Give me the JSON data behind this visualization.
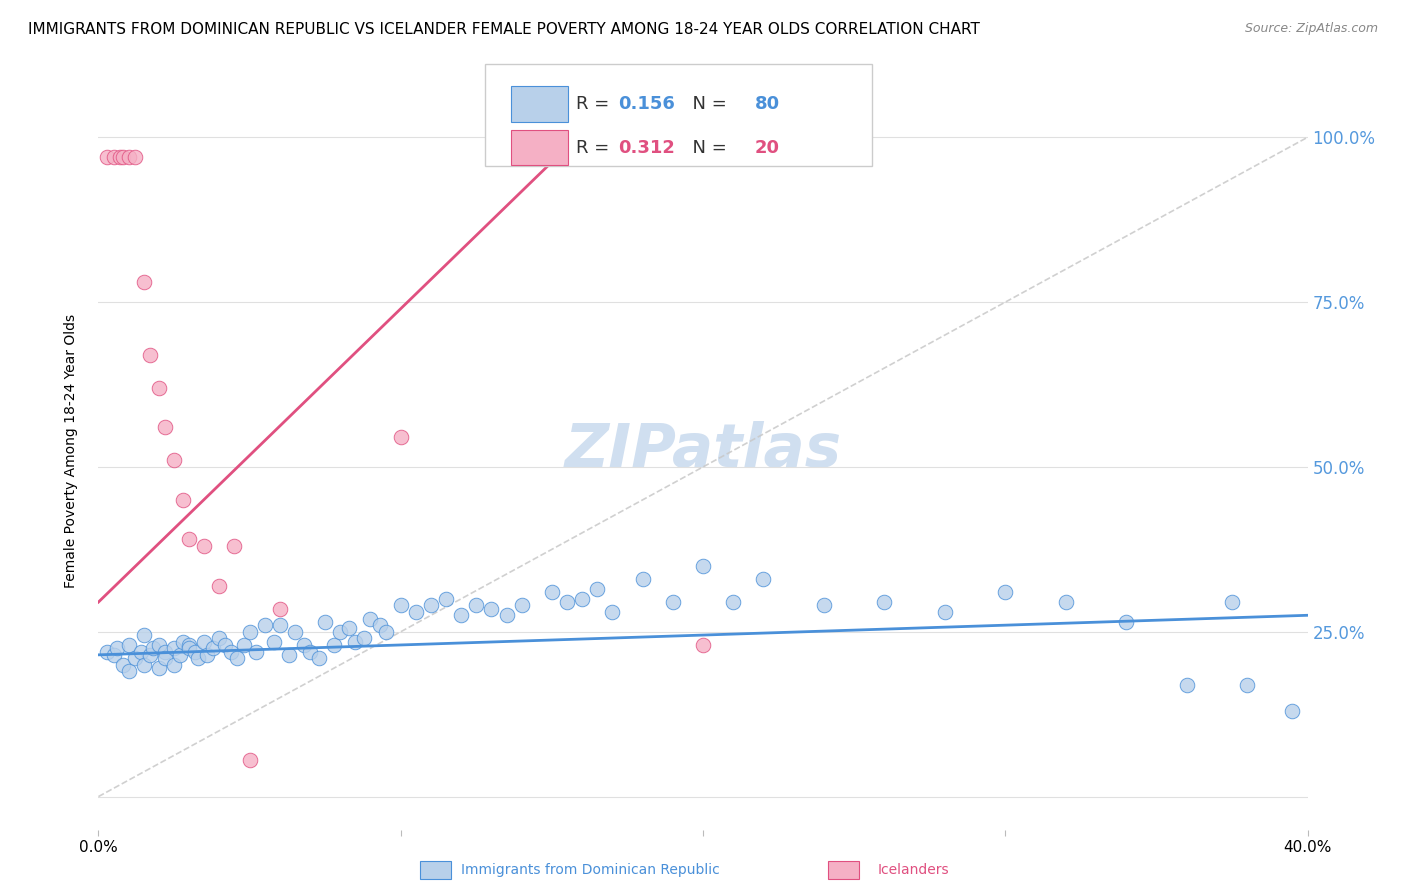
{
  "title": "IMMIGRANTS FROM DOMINICAN REPUBLIC VS ICELANDER FEMALE POVERTY AMONG 18-24 YEAR OLDS CORRELATION CHART",
  "source": "Source: ZipAtlas.com",
  "ylabel": "Female Poverty Among 18-24 Year Olds",
  "yticks": [
    0.0,
    0.25,
    0.5,
    0.75,
    1.0
  ],
  "ytick_labels": [
    "",
    "25.0%",
    "50.0%",
    "75.0%",
    "100.0%"
  ],
  "xlim": [
    0.0,
    0.4
  ],
  "ylim": [
    -0.05,
    1.1
  ],
  "legend_blue_R": "0.156",
  "legend_blue_N": "80",
  "legend_pink_R": "0.312",
  "legend_pink_N": "20",
  "legend_label_blue": "Immigrants from Dominican Republic",
  "legend_label_pink": "Icelanders",
  "blue_color": "#b8d0ea",
  "pink_color": "#f5b0c5",
  "blue_line_color": "#4a90d9",
  "pink_line_color": "#e05080",
  "dash_line_color": "#c8c8c8",
  "watermark": "ZIPatlas",
  "blue_scatter_x": [
    0.003,
    0.005,
    0.006,
    0.008,
    0.01,
    0.01,
    0.012,
    0.014,
    0.015,
    0.015,
    0.017,
    0.018,
    0.02,
    0.02,
    0.022,
    0.022,
    0.025,
    0.025,
    0.027,
    0.028,
    0.03,
    0.03,
    0.032,
    0.033,
    0.035,
    0.036,
    0.038,
    0.04,
    0.042,
    0.044,
    0.046,
    0.048,
    0.05,
    0.052,
    0.055,
    0.058,
    0.06,
    0.063,
    0.065,
    0.068,
    0.07,
    0.073,
    0.075,
    0.078,
    0.08,
    0.083,
    0.085,
    0.088,
    0.09,
    0.093,
    0.095,
    0.1,
    0.105,
    0.11,
    0.115,
    0.12,
    0.125,
    0.13,
    0.135,
    0.14,
    0.15,
    0.155,
    0.16,
    0.165,
    0.17,
    0.18,
    0.19,
    0.2,
    0.21,
    0.22,
    0.24,
    0.26,
    0.28,
    0.3,
    0.32,
    0.34,
    0.36,
    0.375,
    0.38,
    0.395
  ],
  "blue_scatter_y": [
    0.22,
    0.215,
    0.225,
    0.2,
    0.23,
    0.19,
    0.21,
    0.22,
    0.245,
    0.2,
    0.215,
    0.225,
    0.23,
    0.195,
    0.22,
    0.21,
    0.225,
    0.2,
    0.215,
    0.235,
    0.23,
    0.225,
    0.22,
    0.21,
    0.235,
    0.215,
    0.225,
    0.24,
    0.23,
    0.22,
    0.21,
    0.23,
    0.25,
    0.22,
    0.26,
    0.235,
    0.26,
    0.215,
    0.25,
    0.23,
    0.22,
    0.21,
    0.265,
    0.23,
    0.25,
    0.255,
    0.235,
    0.24,
    0.27,
    0.26,
    0.25,
    0.29,
    0.28,
    0.29,
    0.3,
    0.275,
    0.29,
    0.285,
    0.275,
    0.29,
    0.31,
    0.295,
    0.3,
    0.315,
    0.28,
    0.33,
    0.295,
    0.35,
    0.295,
    0.33,
    0.29,
    0.295,
    0.28,
    0.31,
    0.295,
    0.265,
    0.17,
    0.295,
    0.17,
    0.13
  ],
  "pink_scatter_x": [
    0.003,
    0.005,
    0.007,
    0.008,
    0.01,
    0.012,
    0.015,
    0.017,
    0.02,
    0.022,
    0.025,
    0.028,
    0.03,
    0.035,
    0.04,
    0.045,
    0.05,
    0.06,
    0.1,
    0.2
  ],
  "pink_scatter_y": [
    0.97,
    0.97,
    0.97,
    0.97,
    0.97,
    0.97,
    0.78,
    0.67,
    0.62,
    0.56,
    0.51,
    0.45,
    0.39,
    0.38,
    0.32,
    0.38,
    0.055,
    0.285,
    0.545,
    0.23
  ],
  "blue_trend_x": [
    0.0,
    0.4
  ],
  "blue_trend_y": [
    0.215,
    0.275
  ],
  "pink_trend_x": [
    0.0,
    0.1
  ],
  "pink_trend_y": [
    0.295,
    0.74
  ],
  "dash_trend_x": [
    0.0,
    0.4
  ],
  "dash_trend_y": [
    0.0,
    1.0
  ],
  "grid_color": "#e0e0e0",
  "title_fontsize": 11,
  "axis_label_fontsize": 10,
  "tick_fontsize": 11,
  "watermark_fontsize": 44,
  "watermark_color": "#d0dff0",
  "right_tick_color": "#5599dd",
  "scatter_size": 110
}
